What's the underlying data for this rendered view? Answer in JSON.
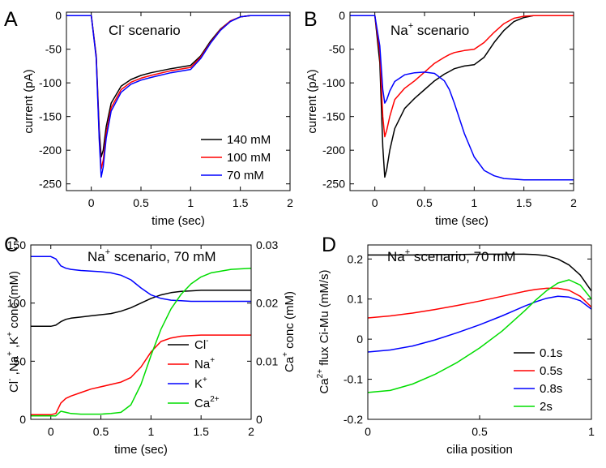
{
  "colors": {
    "black": "#000000",
    "red": "#ff0000",
    "blue": "#0000ff",
    "green": "#00dd00"
  },
  "panels": {
    "A": {
      "letter": "A",
      "title_pre": "Cl",
      "title_sup": "-",
      "title_post": " scenario",
      "ylabel": "current (pA)",
      "xlabel": "time (sec)",
      "legend": [
        "140 mM",
        "100 mM",
        "70 mM"
      ]
    },
    "B": {
      "letter": "B",
      "title_pre": "Na",
      "title_sup": "+",
      "title_post": " scenario",
      "ylabel": "current (pA)",
      "xlabel": "time (sec)"
    },
    "C": {
      "letter": "C",
      "title_pre": "Na",
      "title_sup": "+",
      "title_post": " scenario, 70 mM",
      "ylabel_left": {
        "p1": "Cl",
        "s1": "-",
        "p2": " ,Na",
        "s2": "+",
        "p3": " ,K",
        "s3": "+",
        "p4": " conc (mM)"
      },
      "ylabel_right": {
        "p1": "Ca",
        "s1": "+",
        "p2": " conc (mM)"
      },
      "xlabel": "time (sec)",
      "legend": [
        {
          "base": "Cl",
          "sup": "-"
        },
        {
          "base": "Na",
          "sup": "+"
        },
        {
          "base": "K",
          "sup": "+"
        },
        {
          "base": "Ca",
          "sup": "2+"
        }
      ]
    },
    "D": {
      "letter": "D",
      "title_pre": "Na",
      "title_sup": "+",
      "title_post": " scenario, 70 mM",
      "ylabel": {
        "p1": "Ca",
        "s1": "2+",
        "p2": " flux Ci-Mu (mM/s)"
      },
      "xlabel": "cilia position",
      "legend": [
        "0.1s",
        "0.5s",
        "0.8s",
        "2s"
      ]
    }
  },
  "chart_data": [
    {
      "panel": "A",
      "type": "line",
      "title": "Cl- scenario",
      "xlabel": "time (sec)",
      "ylabel": "current (pA)",
      "xlim": [
        -0.25,
        2
      ],
      "ylim": [
        -260,
        5
      ],
      "xticks": [
        0,
        0.5,
        1,
        1.5,
        2
      ],
      "yticks": [
        0,
        -50,
        -100,
        -150,
        -200,
        -250
      ],
      "x": [
        -0.25,
        0,
        0.05,
        0.08,
        0.1,
        0.12,
        0.15,
        0.2,
        0.3,
        0.4,
        0.5,
        0.6,
        0.8,
        1.0,
        1.1,
        1.2,
        1.3,
        1.4,
        1.5,
        1.6,
        1.7,
        2.0
      ],
      "series": [
        {
          "name": "140 mM",
          "color": "black",
          "values": [
            0,
            0,
            -60,
            -170,
            -210,
            -200,
            -165,
            -130,
            -105,
            -95,
            -89,
            -85,
            -79,
            -74,
            -60,
            -38,
            -20,
            -8,
            -2,
            0,
            0,
            0
          ]
        },
        {
          "name": "100 mM",
          "color": "red",
          "values": [
            0,
            0,
            -62,
            -180,
            -228,
            -215,
            -175,
            -137,
            -110,
            -99,
            -93,
            -89,
            -82,
            -77,
            -62,
            -40,
            -21,
            -8,
            -2,
            0,
            0,
            0
          ]
        },
        {
          "name": "70 mM",
          "color": "blue",
          "values": [
            0,
            0,
            -64,
            -185,
            -240,
            -225,
            -182,
            -142,
            -114,
            -102,
            -96,
            -92,
            -85,
            -80,
            -64,
            -41,
            -22,
            -9,
            -2,
            0,
            0,
            0
          ]
        }
      ]
    },
    {
      "panel": "B",
      "type": "line",
      "title": "Na+ scenario",
      "xlabel": "time (sec)",
      "ylabel": "current (pA)",
      "xlim": [
        -0.25,
        2
      ],
      "ylim": [
        -260,
        5
      ],
      "xticks": [
        0,
        0.5,
        1,
        1.5,
        2
      ],
      "yticks": [
        0,
        -50,
        -100,
        -150,
        -200,
        -250
      ],
      "x": [
        -0.25,
        0,
        0.05,
        0.08,
        0.1,
        0.12,
        0.15,
        0.2,
        0.3,
        0.4,
        0.5,
        0.6,
        0.7,
        0.75,
        0.8,
        0.9,
        1.0,
        1.1,
        1.2,
        1.3,
        1.4,
        1.5,
        1.6,
        1.7,
        1.8,
        2.0
      ],
      "series": [
        {
          "name": "140 mM",
          "color": "black",
          "values": [
            0,
            0,
            -70,
            -195,
            -240,
            -228,
            -200,
            -168,
            -138,
            -123,
            -110,
            -97,
            -87,
            -83,
            -79,
            -75,
            -73,
            -62,
            -40,
            -22,
            -9,
            -3,
            0,
            0,
            0,
            0
          ]
        },
        {
          "name": "100 mM",
          "color": "red",
          "values": [
            0,
            0,
            -55,
            -150,
            -180,
            -170,
            -150,
            -125,
            -108,
            -97,
            -84,
            -71,
            -62,
            -58,
            -55,
            -52,
            -50,
            -40,
            -25,
            -12,
            -4,
            -1,
            0,
            0,
            0,
            0
          ]
        },
        {
          "name": "70 mM",
          "color": "blue",
          "values": [
            0,
            0,
            -45,
            -110,
            -130,
            -125,
            -112,
            -98,
            -88,
            -85,
            -84,
            -86,
            -97,
            -110,
            -130,
            -175,
            -210,
            -230,
            -238,
            -242,
            -243,
            -244,
            -244,
            -244,
            -244,
            -244
          ]
        }
      ]
    },
    {
      "panel": "C",
      "type": "line",
      "title": "Na+ scenario, 70 mM",
      "xlabel": "time (sec)",
      "ylabel": "Cl- ,Na+ ,K+ conc (mM)",
      "ylabel_right": "Ca+ conc (mM)",
      "xlim": [
        -0.2,
        2
      ],
      "ylim": [
        0,
        150
      ],
      "ylim_right": [
        0,
        0.03
      ],
      "xticks": [
        0,
        0.5,
        1,
        1.5,
        2
      ],
      "yticks": [
        0,
        50,
        100,
        150
      ],
      "yticks_right": [
        0,
        0.01,
        0.02,
        0.03
      ],
      "x": [
        -0.2,
        0,
        0.05,
        0.1,
        0.15,
        0.2,
        0.3,
        0.4,
        0.5,
        0.6,
        0.7,
        0.8,
        0.9,
        1.0,
        1.1,
        1.2,
        1.3,
        1.4,
        1.5,
        1.6,
        1.8,
        2.0
      ],
      "series": [
        {
          "name": "Cl-",
          "color": "black",
          "axis": "left",
          "values": [
            80,
            80,
            81,
            84,
            86,
            87,
            88,
            89,
            90,
            91,
            93,
            96,
            100,
            104,
            107,
            109,
            110,
            110.5,
            111,
            111,
            111,
            111
          ]
        },
        {
          "name": "Na+",
          "color": "red",
          "axis": "left",
          "values": [
            4,
            4,
            5,
            14,
            18,
            20,
            23,
            26,
            28,
            30,
            32,
            36,
            45,
            58,
            67,
            70,
            71.5,
            72,
            72.5,
            72.5,
            72.5,
            72.5
          ]
        },
        {
          "name": "K+",
          "color": "blue",
          "axis": "left",
          "values": [
            140,
            140,
            138,
            132,
            130,
            129,
            128,
            127.5,
            127,
            126,
            124,
            120,
            113,
            107,
            104,
            102.5,
            102,
            101.5,
            101.5,
            101.5,
            101.5,
            101.5
          ]
        },
        {
          "name": "Ca2+",
          "color": "green",
          "axis": "right",
          "values": [
            0.0006,
            0.0006,
            0.0006,
            0.0014,
            0.0012,
            0.001,
            0.0009,
            0.0009,
            0.0009,
            0.001,
            0.0012,
            0.0025,
            0.006,
            0.011,
            0.0155,
            0.019,
            0.0215,
            0.0233,
            0.0245,
            0.0252,
            0.0258,
            0.026
          ]
        }
      ]
    },
    {
      "panel": "D",
      "type": "line",
      "title": "Na+ scenario, 70 mM",
      "xlabel": "cilia position",
      "ylabel": "Ca2+ flux Ci-Mu (mM/s)",
      "xlim": [
        0,
        1
      ],
      "ylim": [
        -0.2,
        0.235
      ],
      "xticks": [
        0,
        0.5,
        1
      ],
      "yticks": [
        -0.2,
        -0.1,
        0,
        0.1,
        0.2
      ],
      "x": [
        0,
        0.1,
        0.2,
        0.3,
        0.4,
        0.5,
        0.6,
        0.7,
        0.75,
        0.8,
        0.85,
        0.9,
        0.95,
        1.0
      ],
      "series": [
        {
          "name": "0.1s",
          "color": "black",
          "values": [
            0.21,
            0.21,
            0.21,
            0.211,
            0.211,
            0.212,
            0.212,
            0.212,
            0.211,
            0.208,
            0.2,
            0.185,
            0.16,
            0.12
          ]
        },
        {
          "name": "0.5s",
          "color": "red",
          "values": [
            0.053,
            0.058,
            0.065,
            0.074,
            0.084,
            0.095,
            0.107,
            0.119,
            0.124,
            0.127,
            0.127,
            0.122,
            0.107,
            0.08
          ]
        },
        {
          "name": "0.8s",
          "color": "blue",
          "values": [
            -0.032,
            -0.027,
            -0.017,
            -0.002,
            0.016,
            0.036,
            0.058,
            0.082,
            0.093,
            0.102,
            0.107,
            0.105,
            0.096,
            0.075
          ]
        },
        {
          "name": "2s",
          "color": "green",
          "values": [
            -0.133,
            -0.128,
            -0.112,
            -0.088,
            -0.058,
            -0.022,
            0.02,
            0.07,
            0.097,
            0.121,
            0.14,
            0.148,
            0.135,
            0.1
          ]
        }
      ]
    }
  ]
}
